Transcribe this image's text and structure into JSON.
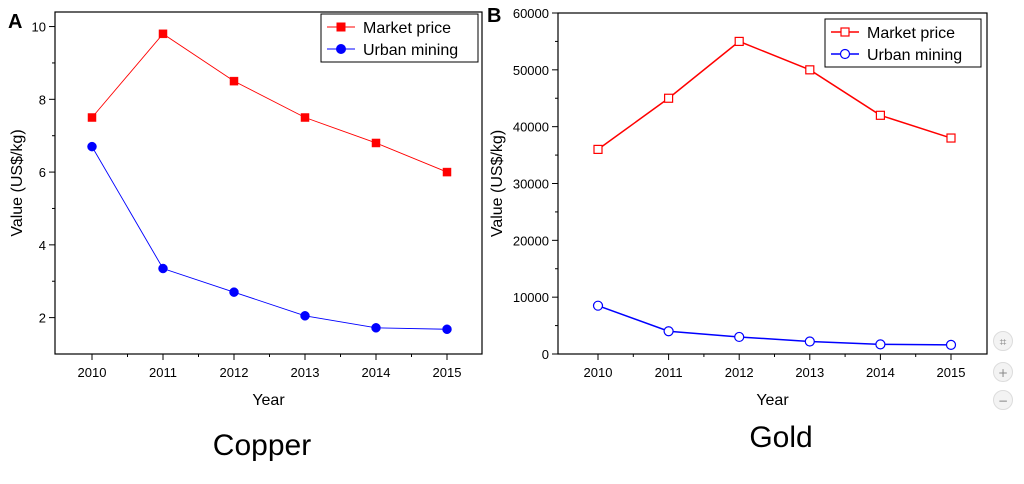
{
  "chart_data": [
    {
      "type": "line",
      "panel_label": "A",
      "caption": "Copper",
      "xlabel": "Year",
      "ylabel": "Value (US$/kg)",
      "categories": [
        "2010",
        "2011",
        "2012",
        "2013",
        "2014",
        "2015"
      ],
      "ylim": [
        1,
        10.4
      ],
      "yticks": [
        2,
        4,
        6,
        8,
        10
      ],
      "ytick_labels": [
        "2",
        "4",
        "6",
        "8",
        "10"
      ],
      "legend": "top-right",
      "grid": false,
      "series": [
        {
          "name": "Market price",
          "values": [
            7.5,
            9.8,
            8.5,
            7.5,
            6.8,
            6.0
          ],
          "color": "#ff0000",
          "marker": "square-filled"
        },
        {
          "name": "Urban mining",
          "values": [
            6.7,
            3.35,
            2.7,
            2.05,
            1.72,
            1.68
          ],
          "color": "#0000ff",
          "marker": "circle-filled"
        }
      ]
    },
    {
      "type": "line",
      "panel_label": "B",
      "caption": "Gold",
      "xlabel": "Year",
      "ylabel": "Value (US$/kg)",
      "categories": [
        "2010",
        "2011",
        "2012",
        "2013",
        "2014",
        "2015"
      ],
      "ylim": [
        0,
        60000
      ],
      "yticks": [
        0,
        10000,
        20000,
        30000,
        40000,
        50000,
        60000
      ],
      "ytick_labels": [
        "0",
        "10000",
        "20000",
        "30000",
        "40000",
        "50000",
        "60000"
      ],
      "legend": "top-right",
      "grid": false,
      "series": [
        {
          "name": "Market price",
          "values": [
            36000,
            45000,
            55000,
            50000,
            42000,
            38000
          ],
          "color": "#ff0000",
          "marker": "square-open"
        },
        {
          "name": "Urban mining",
          "values": [
            8500,
            4000,
            3000,
            2200,
            1700,
            1600
          ],
          "color": "#0000ff",
          "marker": "circle-open"
        }
      ]
    }
  ],
  "controls": [
    {
      "icon": "fit-screen-icon",
      "symbol": "⌗"
    },
    {
      "icon": "zoom-in-icon",
      "symbol": "+"
    },
    {
      "icon": "zoom-out-icon",
      "symbol": "−"
    }
  ]
}
